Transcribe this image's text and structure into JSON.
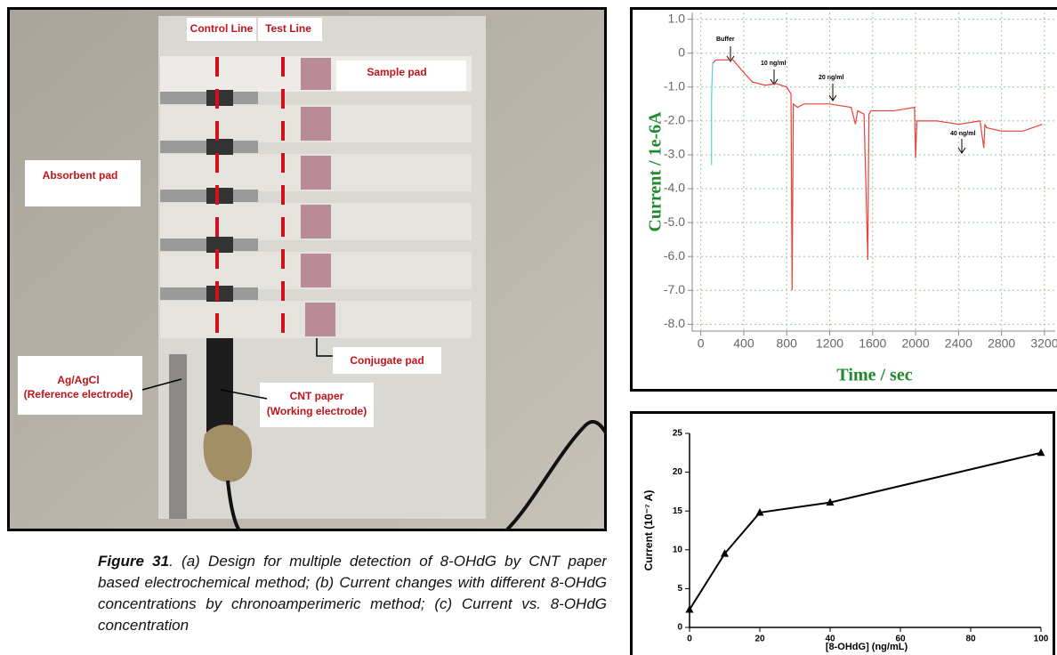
{
  "figure_a": {
    "control_line": "Control Line",
    "test_line": "Test Line",
    "sample_pad": "Sample pad",
    "absorbent_pad": "Absorbent pad",
    "conjugate_pad": "Conjugate pad",
    "reference": [
      "Ag/AgCl",
      "(Reference electrode)"
    ],
    "working": [
      "CNT paper",
      "(Working electrode)"
    ]
  },
  "caption": {
    "label": "Figure 31",
    "text": ". (a) Design for multiple detection of 8-OHdG by CNT paper based electrochemical method; (b) Current changes with different 8-OHdG concentrations by chronoamperimeric method; (c) Current vs. 8-OHdG concentration"
  },
  "chart_data": [
    {
      "type": "line",
      "xlabel": "Time / sec",
      "ylabel": "Current / 1e-6A",
      "xlim": [
        -80,
        3300
      ],
      "ylim": [
        -8.2,
        1.2
      ],
      "xticks": [
        0,
        400,
        800,
        1200,
        1600,
        2000,
        2400,
        2800,
        3200
      ],
      "yticks": [
        {
          "value": 1,
          "label": "1.0"
        },
        0,
        {
          "value": -1,
          "label": "-1.0"
        },
        {
          "value": -2,
          "label": "-2.0"
        },
        {
          "value": -3,
          "label": "-3.0"
        },
        {
          "value": -4,
          "label": "-4.0"
        },
        {
          "value": -5,
          "label": "-5.0"
        },
        {
          "value": -6,
          "label": "-6.0"
        },
        {
          "value": -7,
          "label": "-7.0"
        },
        {
          "value": -8,
          "label": "-8.0"
        }
      ],
      "grid": true,
      "annotations": [
        "Buffer",
        "10 ng/ml",
        "20 ng/ml",
        "40 ng/ml"
      ],
      "series": [
        {
          "color": "#5ad0d0",
          "x": [
            100,
            100,
            110
          ],
          "values": [
            -3.3,
            -1.3,
            -0.3
          ]
        },
        {
          "color": "#e8413a",
          "x": [
            110,
            140,
            300,
            380,
            480,
            600,
            700,
            800,
            840,
            850,
            862,
            900,
            960,
            1200,
            1400,
            1440,
            1460,
            1520,
            1555,
            1565,
            1585,
            1800,
            1990,
            2000,
            2012,
            2200,
            2400,
            2600,
            2635,
            2645,
            2660,
            2800,
            3000,
            3180
          ],
          "values": [
            -0.3,
            -0.2,
            -0.2,
            -0.5,
            -0.85,
            -0.95,
            -0.9,
            -1.0,
            -1.2,
            -7.0,
            -1.5,
            -1.6,
            -1.5,
            -1.5,
            -1.6,
            -2.1,
            -1.7,
            -1.8,
            -6.1,
            -1.8,
            -1.7,
            -1.7,
            -1.6,
            -3.1,
            -2.0,
            -2.0,
            -2.1,
            -2.0,
            -2.8,
            -2.1,
            -2.2,
            -2.3,
            -2.3,
            -2.1
          ]
        }
      ]
    },
    {
      "type": "line",
      "xlabel": "[8-OHdG] (ng/mL)",
      "ylabel": "Current (10⁻⁷ A)",
      "xlim": [
        0,
        100
      ],
      "ylim": [
        0,
        25
      ],
      "xticks": [
        0,
        20,
        40,
        60,
        80,
        100
      ],
      "yticks": [
        0,
        5,
        10,
        15,
        20,
        25
      ],
      "x": [
        0,
        10,
        20,
        40,
        100
      ],
      "values": [
        2.3,
        9.5,
        14.8,
        16.1,
        22.5
      ],
      "color": "#000000",
      "marker": "triangle"
    }
  ]
}
